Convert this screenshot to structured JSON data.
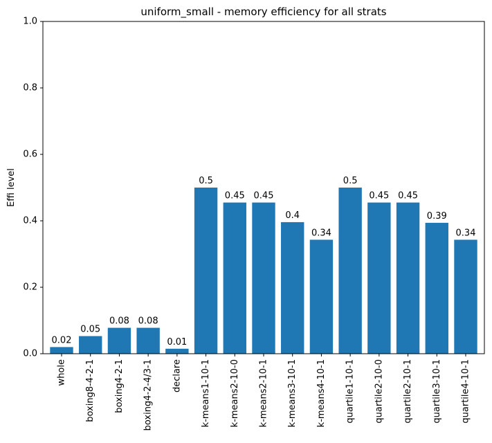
{
  "chart_data": {
    "type": "bar",
    "title": "uniform_small - memory efficiency for all strats",
    "xlabel": "",
    "ylabel": "Effi level",
    "ylim": [
      0,
      1
    ],
    "yticks": [
      "0.0",
      "0.2",
      "0.4",
      "0.6",
      "0.8",
      "1.0"
    ],
    "categories": [
      "whole",
      "boxing8-4-2-1",
      "boxing4-2-1",
      "boxing4-2-4/3-1",
      "declare",
      "k-means1-10-1",
      "k-means2-10-0",
      "k-means2-10-1",
      "k-means3-10-1",
      "k-means4-10-1",
      "quartile1-10-1",
      "quartile2-10-0",
      "quartile2-10-1",
      "quartile3-10-1",
      "quartile4-10-1"
    ],
    "values": [
      0.02,
      0.053,
      0.078,
      0.078,
      0.015,
      0.5,
      0.455,
      0.455,
      0.396,
      0.343,
      0.5,
      0.455,
      0.455,
      0.394,
      0.343
    ],
    "data_labels": [
      "0.02",
      "0.05",
      "0.08",
      "0.08",
      "0.01",
      "0.5",
      "0.45",
      "0.45",
      "0.4",
      "0.34",
      "0.5",
      "0.45",
      "0.45",
      "0.39",
      "0.34"
    ],
    "bar_color": "#1f77b4",
    "grid": false,
    "legend": "none"
  }
}
